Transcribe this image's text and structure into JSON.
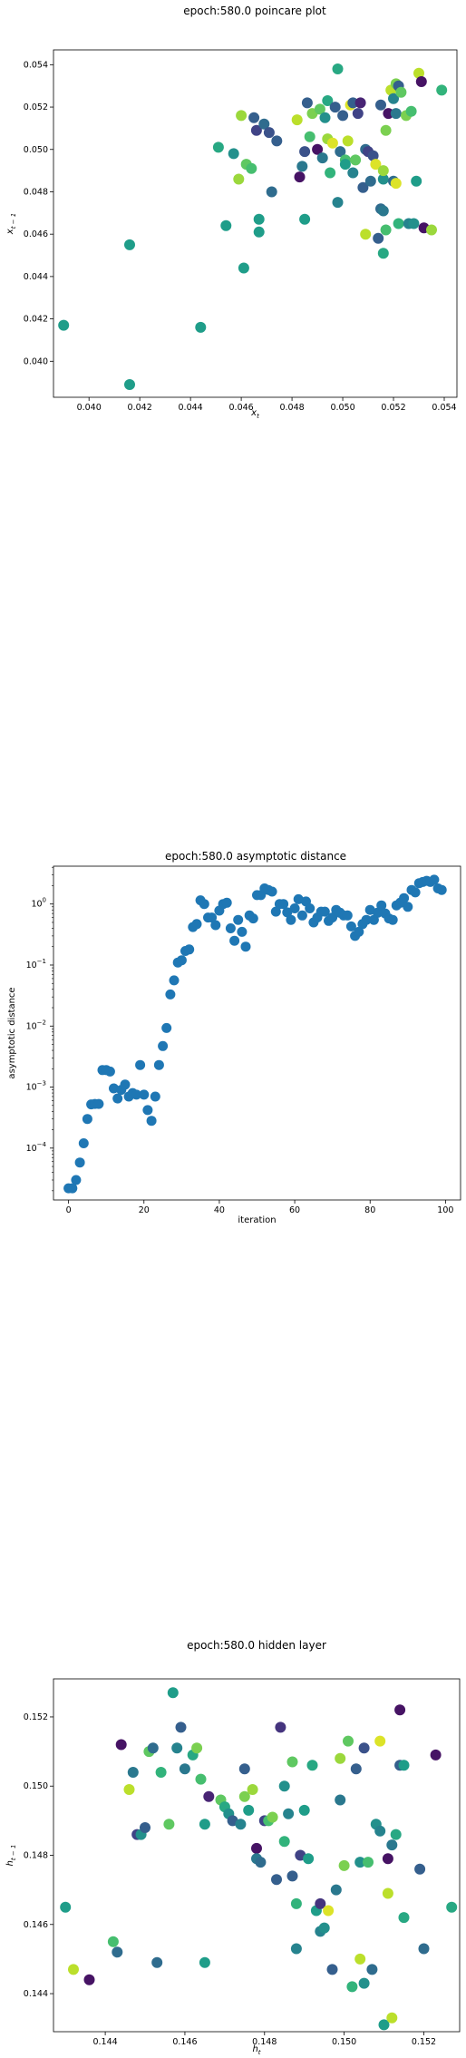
{
  "chart_data": [
    {
      "type": "scatter",
      "title": "epoch:580.0 poincare plot",
      "xlabel": "x_t",
      "ylabel": "x_t-1",
      "xlim": [
        0.0386,
        0.0545
      ],
      "ylim": [
        0.0383,
        0.0547
      ],
      "xticks": [
        "0.040",
        "0.042",
        "0.044",
        "0.046",
        "0.048",
        "0.050",
        "0.052",
        "0.054"
      ],
      "yticks": [
        "0.040",
        "0.042",
        "0.044",
        "0.046",
        "0.048",
        "0.050",
        "0.052",
        "0.054"
      ],
      "grid": false,
      "colormap": "viridis",
      "points": [
        {
          "x": 0.039,
          "y": 0.0417,
          "c": 0.55
        },
        {
          "x": 0.0416,
          "y": 0.0389,
          "c": 0.55
        },
        {
          "x": 0.0416,
          "y": 0.0455,
          "c": 0.55
        },
        {
          "x": 0.0444,
          "y": 0.0416,
          "c": 0.55
        },
        {
          "x": 0.0451,
          "y": 0.0501,
          "c": 0.6
        },
        {
          "x": 0.0454,
          "y": 0.0464,
          "c": 0.55
        },
        {
          "x": 0.0457,
          "y": 0.0498,
          "c": 0.5
        },
        {
          "x": 0.0459,
          "y": 0.0486,
          "c": 0.85
        },
        {
          "x": 0.046,
          "y": 0.0516,
          "c": 0.85
        },
        {
          "x": 0.0461,
          "y": 0.0444,
          "c": 0.55
        },
        {
          "x": 0.0462,
          "y": 0.0493,
          "c": 0.75
        },
        {
          "x": 0.0464,
          "y": 0.0491,
          "c": 0.7
        },
        {
          "x": 0.0465,
          "y": 0.0515,
          "c": 0.3
        },
        {
          "x": 0.0466,
          "y": 0.0509,
          "c": 0.2
        },
        {
          "x": 0.0467,
          "y": 0.0467,
          "c": 0.55
        },
        {
          "x": 0.0467,
          "y": 0.0461,
          "c": 0.55
        },
        {
          "x": 0.0469,
          "y": 0.0512,
          "c": 0.35
        },
        {
          "x": 0.0471,
          "y": 0.0508,
          "c": 0.25
        },
        {
          "x": 0.0472,
          "y": 0.048,
          "c": 0.35
        },
        {
          "x": 0.0474,
          "y": 0.0504,
          "c": 0.3
        },
        {
          "x": 0.0482,
          "y": 0.0514,
          "c": 0.9
        },
        {
          "x": 0.0483,
          "y": 0.0487,
          "c": 0.05
        },
        {
          "x": 0.0484,
          "y": 0.0492,
          "c": 0.4
        },
        {
          "x": 0.0485,
          "y": 0.0467,
          "c": 0.55
        },
        {
          "x": 0.0485,
          "y": 0.0499,
          "c": 0.25
        },
        {
          "x": 0.0486,
          "y": 0.0522,
          "c": 0.3
        },
        {
          "x": 0.0487,
          "y": 0.0506,
          "c": 0.7
        },
        {
          "x": 0.0488,
          "y": 0.0517,
          "c": 0.8
        },
        {
          "x": 0.049,
          "y": 0.05,
          "c": 0.05
        },
        {
          "x": 0.0491,
          "y": 0.0519,
          "c": 0.75
        },
        {
          "x": 0.0492,
          "y": 0.0496,
          "c": 0.4
        },
        {
          "x": 0.0493,
          "y": 0.0515,
          "c": 0.5
        },
        {
          "x": 0.0494,
          "y": 0.0523,
          "c": 0.6
        },
        {
          "x": 0.0494,
          "y": 0.0505,
          "c": 0.85
        },
        {
          "x": 0.0495,
          "y": 0.0489,
          "c": 0.65
        },
        {
          "x": 0.0496,
          "y": 0.0503,
          "c": 0.95
        },
        {
          "x": 0.0497,
          "y": 0.052,
          "c": 0.3
        },
        {
          "x": 0.0498,
          "y": 0.0538,
          "c": 0.6
        },
        {
          "x": 0.0498,
          "y": 0.0475,
          "c": 0.45
        },
        {
          "x": 0.0499,
          "y": 0.0499,
          "c": 0.35
        },
        {
          "x": 0.05,
          "y": 0.0516,
          "c": 0.3
        },
        {
          "x": 0.0501,
          "y": 0.0495,
          "c": 0.7
        },
        {
          "x": 0.0501,
          "y": 0.0493,
          "c": 0.55
        },
        {
          "x": 0.0502,
          "y": 0.0504,
          "c": 0.9
        },
        {
          "x": 0.0503,
          "y": 0.0521,
          "c": 0.95
        },
        {
          "x": 0.0504,
          "y": 0.0522,
          "c": 0.3
        },
        {
          "x": 0.0504,
          "y": 0.0489,
          "c": 0.45
        },
        {
          "x": 0.0505,
          "y": 0.0495,
          "c": 0.75
        },
        {
          "x": 0.0506,
          "y": 0.0517,
          "c": 0.2
        },
        {
          "x": 0.0507,
          "y": 0.0522,
          "c": 0.1
        },
        {
          "x": 0.0508,
          "y": 0.0482,
          "c": 0.3
        },
        {
          "x": 0.0509,
          "y": 0.05,
          "c": 0.35
        },
        {
          "x": 0.0509,
          "y": 0.046,
          "c": 0.9
        },
        {
          "x": 0.051,
          "y": 0.0499,
          "c": 0.2
        },
        {
          "x": 0.0511,
          "y": 0.0485,
          "c": 0.35
        },
        {
          "x": 0.0512,
          "y": 0.0497,
          "c": 0.25
        },
        {
          "x": 0.0513,
          "y": 0.0493,
          "c": 0.95
        },
        {
          "x": 0.0514,
          "y": 0.0458,
          "c": 0.3
        },
        {
          "x": 0.0515,
          "y": 0.0472,
          "c": 0.35
        },
        {
          "x": 0.0515,
          "y": 0.0521,
          "c": 0.3
        },
        {
          "x": 0.0516,
          "y": 0.0486,
          "c": 0.5
        },
        {
          "x": 0.0516,
          "y": 0.049,
          "c": 0.85
        },
        {
          "x": 0.0516,
          "y": 0.0451,
          "c": 0.6
        },
        {
          "x": 0.0516,
          "y": 0.0471,
          "c": 0.4
        },
        {
          "x": 0.0517,
          "y": 0.0462,
          "c": 0.7
        },
        {
          "x": 0.0517,
          "y": 0.0509,
          "c": 0.8
        },
        {
          "x": 0.0518,
          "y": 0.0517,
          "c": 0.05
        },
        {
          "x": 0.0519,
          "y": 0.0528,
          "c": 0.9
        },
        {
          "x": 0.052,
          "y": 0.0524,
          "c": 0.45
        },
        {
          "x": 0.052,
          "y": 0.0485,
          "c": 0.35
        },
        {
          "x": 0.0521,
          "y": 0.0517,
          "c": 0.4
        },
        {
          "x": 0.0521,
          "y": 0.0531,
          "c": 0.8
        },
        {
          "x": 0.0521,
          "y": 0.0484,
          "c": 0.95
        },
        {
          "x": 0.0522,
          "y": 0.0465,
          "c": 0.65
        },
        {
          "x": 0.0522,
          "y": 0.053,
          "c": 0.3
        },
        {
          "x": 0.0523,
          "y": 0.0527,
          "c": 0.75
        },
        {
          "x": 0.0525,
          "y": 0.0516,
          "c": 0.8
        },
        {
          "x": 0.0526,
          "y": 0.0465,
          "c": 0.45
        },
        {
          "x": 0.0527,
          "y": 0.0518,
          "c": 0.7
        },
        {
          "x": 0.0528,
          "y": 0.0465,
          "c": 0.5
        },
        {
          "x": 0.0529,
          "y": 0.0485,
          "c": 0.55
        },
        {
          "x": 0.053,
          "y": 0.0536,
          "c": 0.9
        },
        {
          "x": 0.0531,
          "y": 0.0532,
          "c": 0.05
        },
        {
          "x": 0.0532,
          "y": 0.0463,
          "c": 0.05
        },
        {
          "x": 0.0535,
          "y": 0.0462,
          "c": 0.85
        },
        {
          "x": 0.0539,
          "y": 0.0528,
          "c": 0.65
        }
      ]
    },
    {
      "type": "scatter",
      "title": "epoch:580.0 asymptotic distance",
      "xlabel": "iteration",
      "ylabel": "asymptotic distance",
      "xlim": [
        -4,
        104
      ],
      "ylim_log10": [
        -4.85,
        0.62
      ],
      "yscale": "log",
      "xticks": [
        0,
        20,
        40,
        60,
        80,
        100
      ],
      "yticks": [
        "10^-4",
        "10^-3",
        "10^-2",
        "10^-1",
        "10^0"
      ],
      "grid": false,
      "color": "#1f77b4",
      "x": [
        0,
        1,
        2,
        3,
        4,
        5,
        6,
        7,
        8,
        9,
        10,
        11,
        12,
        13,
        14,
        15,
        16,
        17,
        18,
        19,
        20,
        21,
        22,
        23,
        24,
        25,
        26,
        27,
        28,
        29,
        30,
        31,
        32,
        33,
        34,
        35,
        36,
        37,
        38,
        39,
        40,
        41,
        42,
        43,
        44,
        45,
        46,
        47,
        48,
        49,
        50,
        51,
        52,
        53,
        54,
        55,
        56,
        57,
        58,
        59,
        60,
        61,
        62,
        63,
        64,
        65,
        66,
        67,
        68,
        69,
        70,
        71,
        72,
        73,
        74,
        75,
        76,
        77,
        78,
        79,
        80,
        81,
        82,
        83,
        84,
        85,
        86,
        87,
        88,
        89,
        90,
        91,
        92,
        93,
        94,
        95,
        96,
        97,
        98,
        99
      ],
      "y": [
        2.2e-05,
        2.2e-05,
        3e-05,
        5.8e-05,
        0.00012,
        0.0003,
        0.00052,
        0.00053,
        0.00053,
        0.0019,
        0.0019,
        0.0018,
        0.00095,
        0.00065,
        0.0009,
        0.0011,
        0.0007,
        0.0008,
        0.00075,
        0.0023,
        0.00075,
        0.00042,
        0.00028,
        0.0007,
        0.0023,
        0.0047,
        0.0093,
        0.033,
        0.056,
        0.11,
        0.12,
        0.17,
        0.18,
        0.42,
        0.47,
        1.15,
        1.0,
        0.6,
        0.6,
        0.45,
        0.78,
        1.0,
        1.05,
        0.4,
        0.25,
        0.55,
        0.35,
        0.2,
        0.65,
        0.58,
        1.4,
        1.4,
        1.8,
        1.7,
        1.6,
        0.75,
        1.0,
        1.0,
        0.73,
        0.55,
        0.85,
        1.2,
        0.65,
        1.1,
        0.85,
        0.5,
        0.6,
        0.75,
        0.75,
        0.53,
        0.6,
        0.8,
        0.72,
        0.65,
        0.65,
        0.43,
        0.3,
        0.35,
        0.47,
        0.55,
        0.8,
        0.55,
        0.72,
        0.95,
        0.7,
        0.58,
        0.55,
        0.95,
        1.05,
        1.25,
        0.9,
        1.7,
        1.55,
        2.2,
        2.3,
        2.4,
        2.3,
        2.5,
        1.8,
        1.7
      ]
    },
    {
      "type": "scatter",
      "title": "epoch:580.0 hidden layer",
      "xlabel": "h_t",
      "ylabel": "h_t-1",
      "xlim": [
        0.1427,
        0.1529
      ],
      "ylim": [
        0.1429,
        0.1531
      ],
      "xticks": [
        "0.144",
        "0.146",
        "0.148",
        "0.150",
        "0.152"
      ],
      "yticks": [
        "0.144",
        "0.146",
        "0.148",
        "0.150",
        "0.152"
      ],
      "grid": false,
      "colormap": "viridis",
      "points": [
        {
          "x": 0.143,
          "y": 0.1465,
          "c": 0.55
        },
        {
          "x": 0.1432,
          "y": 0.1447,
          "c": 0.9
        },
        {
          "x": 0.1436,
          "y": 0.1444,
          "c": 0.05
        },
        {
          "x": 0.1442,
          "y": 0.1455,
          "c": 0.7
        },
        {
          "x": 0.1443,
          "y": 0.1452,
          "c": 0.35
        },
        {
          "x": 0.1444,
          "y": 0.1512,
          "c": 0.05
        },
        {
          "x": 0.1446,
          "y": 0.1499,
          "c": 0.9
        },
        {
          "x": 0.1447,
          "y": 0.1504,
          "c": 0.4
        },
        {
          "x": 0.1448,
          "y": 0.1486,
          "c": 0.2
        },
        {
          "x": 0.1449,
          "y": 0.1486,
          "c": 0.5
        },
        {
          "x": 0.145,
          "y": 0.1488,
          "c": 0.3
        },
        {
          "x": 0.1451,
          "y": 0.151,
          "c": 0.75
        },
        {
          "x": 0.1452,
          "y": 0.1511,
          "c": 0.35
        },
        {
          "x": 0.1453,
          "y": 0.1449,
          "c": 0.35
        },
        {
          "x": 0.1454,
          "y": 0.1504,
          "c": 0.65
        },
        {
          "x": 0.1456,
          "y": 0.1489,
          "c": 0.75
        },
        {
          "x": 0.1457,
          "y": 0.1527,
          "c": 0.55
        },
        {
          "x": 0.1458,
          "y": 0.1511,
          "c": 0.45
        },
        {
          "x": 0.1459,
          "y": 0.1517,
          "c": 0.3
        },
        {
          "x": 0.146,
          "y": 0.1505,
          "c": 0.4
        },
        {
          "x": 0.1462,
          "y": 0.1509,
          "c": 0.6
        },
        {
          "x": 0.1463,
          "y": 0.1511,
          "c": 0.8
        },
        {
          "x": 0.1464,
          "y": 0.1502,
          "c": 0.7
        },
        {
          "x": 0.1465,
          "y": 0.1489,
          "c": 0.55
        },
        {
          "x": 0.1465,
          "y": 0.1449,
          "c": 0.55
        },
        {
          "x": 0.1466,
          "y": 0.1497,
          "c": 0.1
        },
        {
          "x": 0.1469,
          "y": 0.1496,
          "c": 0.75
        },
        {
          "x": 0.147,
          "y": 0.1494,
          "c": 0.6
        },
        {
          "x": 0.1471,
          "y": 0.1492,
          "c": 0.5
        },
        {
          "x": 0.1472,
          "y": 0.149,
          "c": 0.3
        },
        {
          "x": 0.1474,
          "y": 0.1489,
          "c": 0.45
        },
        {
          "x": 0.1475,
          "y": 0.1497,
          "c": 0.8
        },
        {
          "x": 0.1475,
          "y": 0.1505,
          "c": 0.3
        },
        {
          "x": 0.1476,
          "y": 0.1493,
          "c": 0.55
        },
        {
          "x": 0.1477,
          "y": 0.1499,
          "c": 0.85
        },
        {
          "x": 0.1478,
          "y": 0.1482,
          "c": 0.05
        },
        {
          "x": 0.1478,
          "y": 0.1479,
          "c": 0.4
        },
        {
          "x": 0.1479,
          "y": 0.1478,
          "c": 0.35
        },
        {
          "x": 0.148,
          "y": 0.149,
          "c": 0.2
        },
        {
          "x": 0.1481,
          "y": 0.149,
          "c": 0.7
        },
        {
          "x": 0.1482,
          "y": 0.1491,
          "c": 0.8
        },
        {
          "x": 0.1483,
          "y": 0.1473,
          "c": 0.3
        },
        {
          "x": 0.1484,
          "y": 0.1517,
          "c": 0.15
        },
        {
          "x": 0.1485,
          "y": 0.15,
          "c": 0.5
        },
        {
          "x": 0.1485,
          "y": 0.1484,
          "c": 0.65
        },
        {
          "x": 0.1486,
          "y": 0.1492,
          "c": 0.45
        },
        {
          "x": 0.1487,
          "y": 0.1474,
          "c": 0.3
        },
        {
          "x": 0.1487,
          "y": 0.1507,
          "c": 0.75
        },
        {
          "x": 0.1488,
          "y": 0.1466,
          "c": 0.65
        },
        {
          "x": 0.1488,
          "y": 0.1453,
          "c": 0.45
        },
        {
          "x": 0.1489,
          "y": 0.148,
          "c": 0.2
        },
        {
          "x": 0.149,
          "y": 0.1493,
          "c": 0.55
        },
        {
          "x": 0.1491,
          "y": 0.1479,
          "c": 0.55
        },
        {
          "x": 0.1492,
          "y": 0.1506,
          "c": 0.6
        },
        {
          "x": 0.1493,
          "y": 0.1464,
          "c": 0.55
        },
        {
          "x": 0.1494,
          "y": 0.1466,
          "c": 0.15
        },
        {
          "x": 0.1494,
          "y": 0.1458,
          "c": 0.45
        },
        {
          "x": 0.1495,
          "y": 0.1459,
          "c": 0.5
        },
        {
          "x": 0.1496,
          "y": 0.1464,
          "c": 0.95
        },
        {
          "x": 0.1497,
          "y": 0.1447,
          "c": 0.3
        },
        {
          "x": 0.1498,
          "y": 0.147,
          "c": 0.4
        },
        {
          "x": 0.1499,
          "y": 0.1496,
          "c": 0.4
        },
        {
          "x": 0.1499,
          "y": 0.1508,
          "c": 0.85
        },
        {
          "x": 0.15,
          "y": 0.1477,
          "c": 0.8
        },
        {
          "x": 0.1501,
          "y": 0.1513,
          "c": 0.75
        },
        {
          "x": 0.1502,
          "y": 0.1442,
          "c": 0.65
        },
        {
          "x": 0.1503,
          "y": 0.1505,
          "c": 0.3
        },
        {
          "x": 0.1504,
          "y": 0.145,
          "c": 0.9
        },
        {
          "x": 0.1504,
          "y": 0.1478,
          "c": 0.5
        },
        {
          "x": 0.1505,
          "y": 0.1511,
          "c": 0.25
        },
        {
          "x": 0.1505,
          "y": 0.1443,
          "c": 0.5
        },
        {
          "x": 0.1506,
          "y": 0.1478,
          "c": 0.7
        },
        {
          "x": 0.1507,
          "y": 0.1447,
          "c": 0.35
        },
        {
          "x": 0.1508,
          "y": 0.1489,
          "c": 0.5
        },
        {
          "x": 0.1509,
          "y": 0.1487,
          "c": 0.45
        },
        {
          "x": 0.1509,
          "y": 0.1513,
          "c": 0.95
        },
        {
          "x": 0.151,
          "y": 0.1431,
          "c": 0.55
        },
        {
          "x": 0.1511,
          "y": 0.1479,
          "c": 0.05
        },
        {
          "x": 0.1511,
          "y": 0.1469,
          "c": 0.9
        },
        {
          "x": 0.1512,
          "y": 0.1483,
          "c": 0.4
        },
        {
          "x": 0.1512,
          "y": 0.1433,
          "c": 0.9
        },
        {
          "x": 0.1513,
          "y": 0.1486,
          "c": 0.6
        },
        {
          "x": 0.1514,
          "y": 0.1506,
          "c": 0.3
        },
        {
          "x": 0.1514,
          "y": 0.1522,
          "c": 0.05
        },
        {
          "x": 0.1515,
          "y": 0.1506,
          "c": 0.55
        },
        {
          "x": 0.1515,
          "y": 0.1462,
          "c": 0.6
        },
        {
          "x": 0.1519,
          "y": 0.1476,
          "c": 0.3
        },
        {
          "x": 0.152,
          "y": 0.1453,
          "c": 0.35
        },
        {
          "x": 0.1523,
          "y": 0.1509,
          "c": 0.05
        },
        {
          "x": 0.1527,
          "y": 0.1465,
          "c": 0.6
        }
      ]
    }
  ]
}
